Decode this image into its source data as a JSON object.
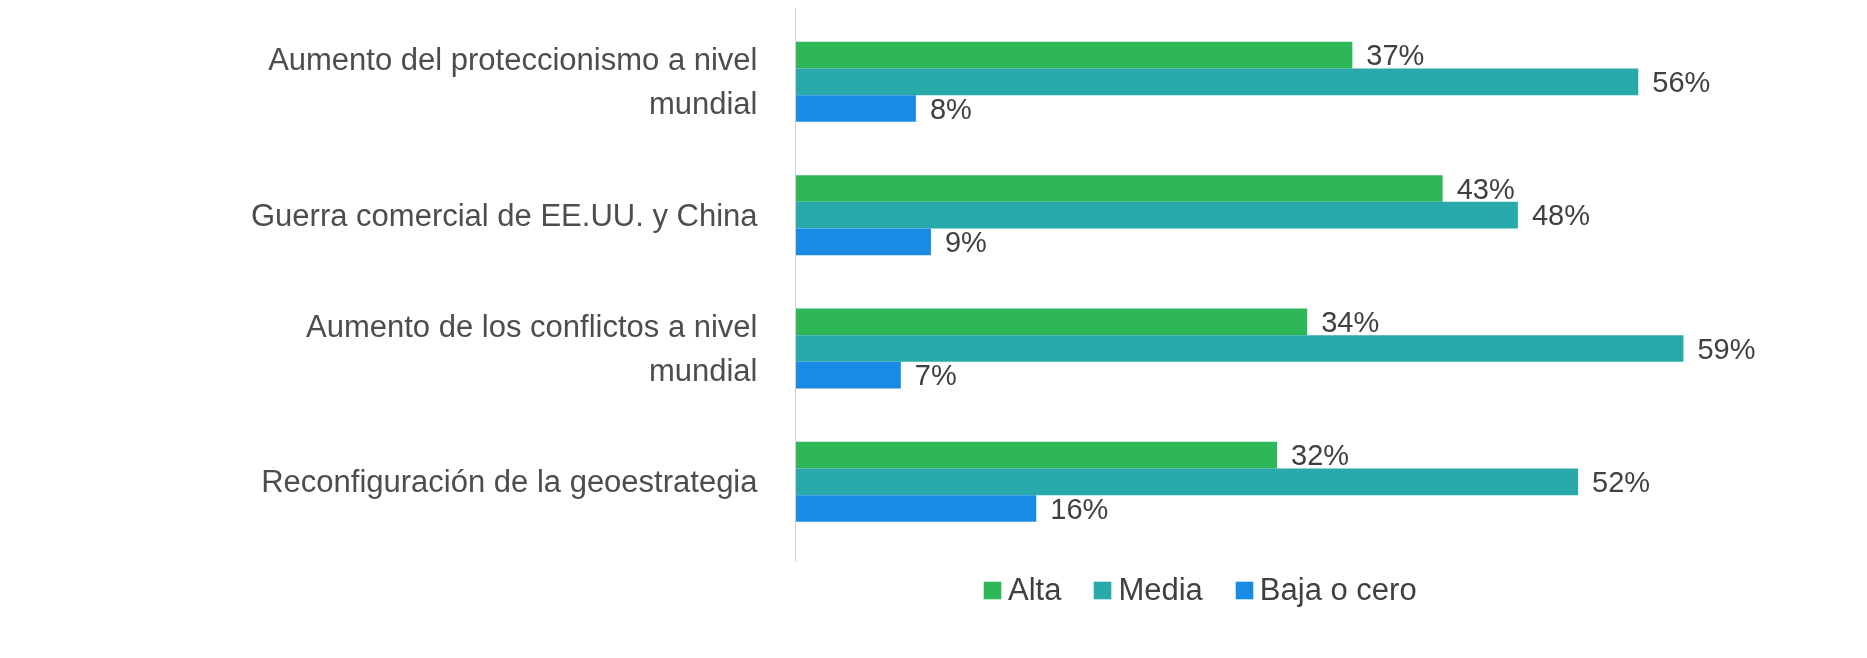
{
  "chart_data": {
    "type": "bar",
    "orientation": "horizontal",
    "categories": [
      "Aumento del proteccionismo a nivel mundial",
      "Guerra comercial de EE.UU. y China",
      "Aumento de los conflictos a nivel mundial",
      "Reconfiguración de la geoestrategia"
    ],
    "series": [
      {
        "name": "Alta",
        "color": "#2db757",
        "values": [
          37,
          43,
          34,
          32
        ],
        "value_labels": [
          "37%",
          "43%",
          "34%",
          "32%"
        ]
      },
      {
        "name": "Media",
        "color": "#27aaa9",
        "values": [
          56,
          48,
          59,
          52
        ],
        "value_labels": [
          "56%",
          "48%",
          "59%",
          "52%"
        ]
      },
      {
        "name": "Baja o cero",
        "color": "#1a8be4",
        "values": [
          8,
          9,
          7,
          16
        ],
        "value_labels": [
          "8%",
          "9%",
          "7%",
          "16%"
        ]
      }
    ],
    "legend": "bottom",
    "grid": false
  }
}
